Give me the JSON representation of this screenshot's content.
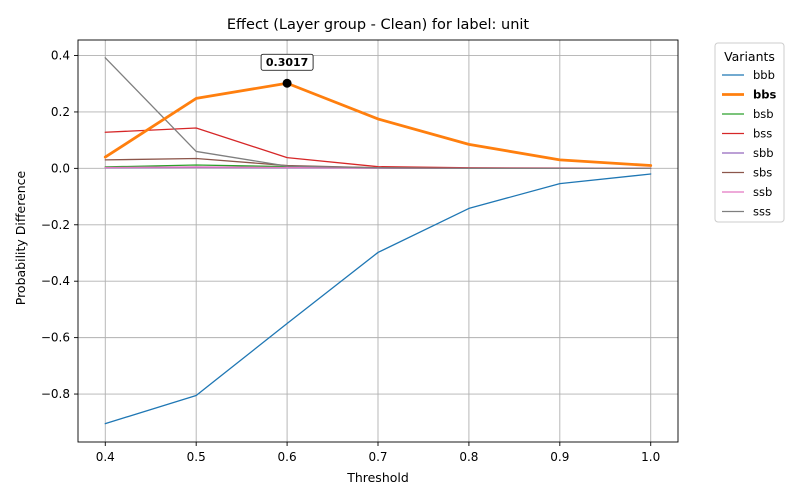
{
  "chart_data": {
    "type": "line",
    "title": "Effect (Layer group - Clean) for label: unit",
    "xlabel": "Threshold",
    "ylabel": "Probability Difference",
    "x": [
      0.4,
      0.5,
      0.6,
      0.7,
      0.8,
      0.9,
      1.0
    ],
    "x_ticks": [
      "0.4",
      "0.5",
      "0.6",
      "0.7",
      "0.8",
      "0.9",
      "1.0"
    ],
    "y_ticks": [
      "0.4",
      "0.2",
      "0.0",
      "−0.2",
      "−0.4",
      "−0.6",
      "−0.8"
    ],
    "y_tick_values": [
      0.4,
      0.2,
      0.0,
      -0.2,
      -0.4,
      -0.6,
      -0.8
    ],
    "xlim": [
      0.37,
      1.03
    ],
    "ylim": [
      -0.97,
      0.455
    ],
    "grid": true,
    "legend": {
      "title": "Variants",
      "placement": "outside-right"
    },
    "highlight_series": "bbs",
    "annotation": {
      "x": 0.6,
      "y": 0.3017,
      "label": "0.3017"
    },
    "series": [
      {
        "name": "bbb",
        "color": "#1f77b4",
        "values": [
          -0.905,
          -0.805,
          -0.55,
          -0.298,
          -0.142,
          -0.054,
          -0.02
        ]
      },
      {
        "name": "bbs",
        "color": "#ff7f0e",
        "values": [
          0.04,
          0.248,
          0.3017,
          0.175,
          0.085,
          0.03,
          0.01
        ]
      },
      {
        "name": "bsb",
        "color": "#2ca02c",
        "values": [
          0.005,
          0.012,
          0.006,
          0.002,
          0.001,
          0.0,
          0.0
        ]
      },
      {
        "name": "bss",
        "color": "#d62728",
        "values": [
          0.128,
          0.143,
          0.038,
          0.006,
          0.002,
          0.001,
          0.0
        ]
      },
      {
        "name": "sbb",
        "color": "#9467bd",
        "values": [
          0.002,
          0.003,
          0.002,
          0.001,
          0.0,
          0.0,
          0.0
        ]
      },
      {
        "name": "sbs",
        "color": "#8c564b",
        "values": [
          0.03,
          0.035,
          0.01,
          0.002,
          0.0,
          0.0,
          0.0
        ]
      },
      {
        "name": "ssb",
        "color": "#e377c2",
        "values": [
          0.003,
          0.005,
          0.003,
          0.001,
          0.0,
          0.0,
          0.0
        ]
      },
      {
        "name": "sss",
        "color": "#7f7f7f",
        "values": [
          0.392,
          0.06,
          0.008,
          0.002,
          0.0,
          0.0,
          0.0
        ]
      }
    ]
  }
}
